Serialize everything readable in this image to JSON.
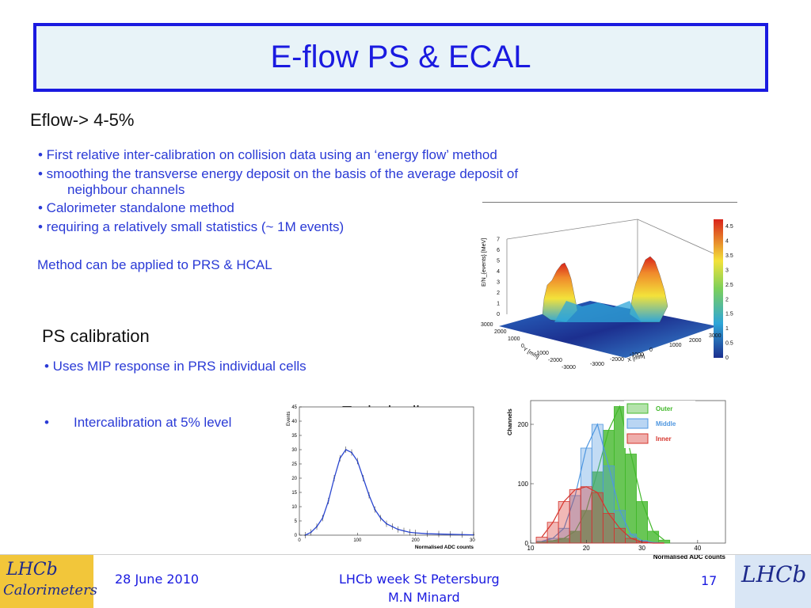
{
  "slide": {
    "title": "E-flow PS & ECAL",
    "eflow_heading": "Eflow-> 4-5%",
    "bullets": [
      "• First relative inter-calibration on collision data using an ‘energy flow’ method",
      "• smoothing the transverse energy deposit on the basis of the average deposit of",
      "neighbour channels",
      "• Calorimeter standalone method",
      "• requiring a relatively small statistics (~ 1M events)"
    ],
    "method_note": "Method can be applied to PRS & HCAL",
    "ps_heading": "PS calibration",
    "ps_bullet": "• Uses MIP response in PRS individual cells",
    "intercal_bullet_mark": "•",
    "intercal_text": "Intercalibration at 5% level",
    "typical_cell_label": "Typical cell"
  },
  "lego_plot": {
    "z_axis_label": "E/N_{events} [MeV]",
    "z_ticks": [
      "0",
      "1",
      "2",
      "3",
      "4",
      "5",
      "6",
      "7"
    ],
    "y_axis_label": "Y [mm]",
    "y_ticks": [
      "3000",
      "2000",
      "1000",
      "0",
      "-1000",
      "-2000",
      "-3000"
    ],
    "x_axis_label": "X [mm]",
    "x_ticks": [
      "-3000",
      "-2000",
      "-1000",
      "0",
      "1000",
      "2000",
      "3000"
    ],
    "colorbar_ticks": [
      "0",
      "0.5",
      "1",
      "1.5",
      "2",
      "2.5",
      "3",
      "3.5",
      "4",
      "4.5"
    ],
    "colors": {
      "high": "#d9241b",
      "mid": "#f3e23a",
      "low": "#2fa6d8",
      "base": "#1c2f8f"
    }
  },
  "chart_data": [
    {
      "type": "scatter",
      "title": "",
      "xlabel": "Normalised ADC counts",
      "ylabel": "Events",
      "xlim": [
        0,
        300
      ],
      "ylim": [
        0,
        45
      ],
      "x_ticks": [
        "0",
        "100",
        "200",
        "300"
      ],
      "y_ticks": [
        "0",
        "5",
        "10",
        "15",
        "20",
        "25",
        "30",
        "35",
        "40",
        "45"
      ],
      "series": [
        {
          "x": [
            10,
            20,
            30,
            40,
            50,
            60,
            70,
            80,
            90,
            100,
            110,
            120,
            130,
            140,
            150,
            160,
            170,
            180,
            190,
            200,
            220,
            240,
            260,
            280,
            300
          ],
          "values": [
            0,
            1,
            3,
            6,
            12,
            20,
            27,
            30,
            29,
            26,
            20,
            14,
            9,
            6,
            4,
            3,
            2,
            1.5,
            1,
            0.8,
            0.5,
            0.4,
            0.3,
            0.2,
            0.1
          ]
        }
      ],
      "colors": {
        "fit": "#2a46d0",
        "points": "#222222"
      }
    },
    {
      "type": "bar",
      "title": "",
      "xlabel": "Normalised ADC counts",
      "ylabel": "Channels",
      "xlim": [
        10,
        45
      ],
      "ylim": [
        0,
        240
      ],
      "x_ticks": [
        "10",
        "20",
        "30",
        "40"
      ],
      "y_ticks": [
        "0",
        "100",
        "200"
      ],
      "categories": [
        12,
        14,
        16,
        18,
        20,
        22,
        24,
        26,
        28,
        30,
        32,
        34
      ],
      "series": [
        {
          "name": "Outer",
          "color": "#43b82c",
          "values": [
            2,
            4,
            8,
            20,
            55,
            120,
            190,
            230,
            150,
            70,
            20,
            5
          ]
        },
        {
          "name": "Middle",
          "color": "#4f97e0",
          "values": [
            3,
            8,
            25,
            80,
            160,
            200,
            130,
            55,
            15,
            4,
            1,
            0
          ]
        },
        {
          "name": "Inner",
          "color": "#d6352d",
          "values": [
            10,
            35,
            70,
            90,
            95,
            85,
            50,
            25,
            8,
            2,
            0,
            0
          ]
        }
      ],
      "legend": "top-right"
    }
  ],
  "footer": {
    "date": "28 June 2010",
    "event_line1": "LHCb week St Petersburg",
    "event_line2": "M.N Minard",
    "page_number": "17",
    "logo_left_line1": "LHCb",
    "logo_left_line2": "Calorimeters",
    "logo_right": "LHCb"
  }
}
